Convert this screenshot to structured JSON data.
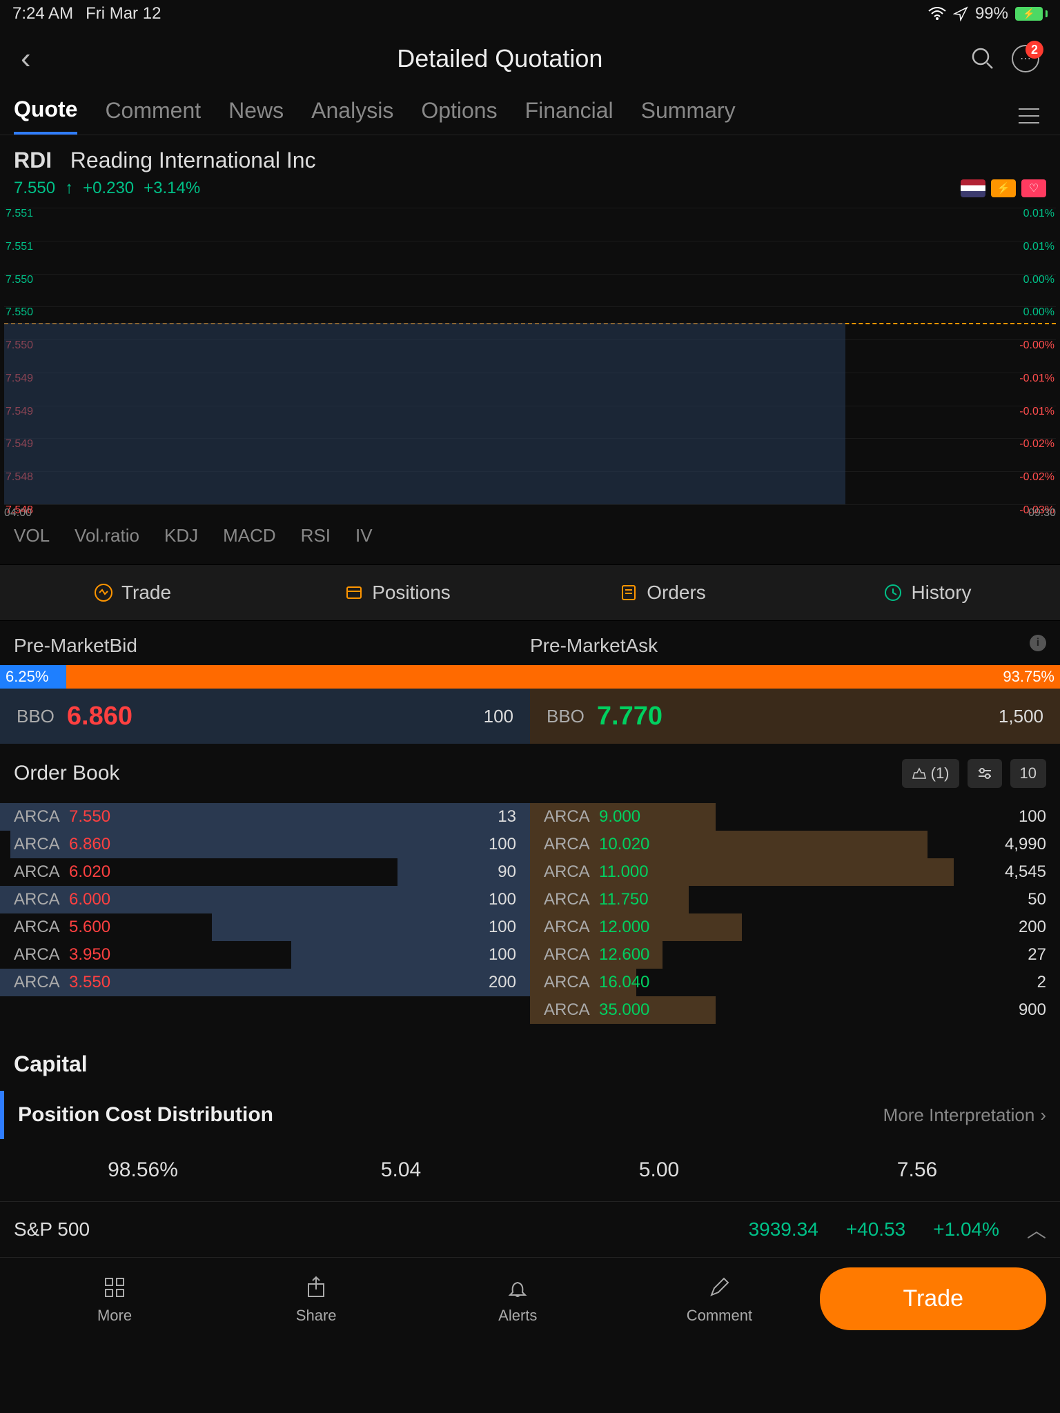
{
  "status": {
    "time": "7:24 AM",
    "date": "Fri Mar 12",
    "battery": "99%"
  },
  "title": "Detailed Quotation",
  "badge": "2",
  "tabs": [
    "Quote",
    "Comment",
    "News",
    "Analysis",
    "Options",
    "Financial",
    "Summary"
  ],
  "stock": {
    "ticker": "RDI",
    "name": "Reading International Inc",
    "price": "7.550",
    "arrow": "↑",
    "change": "+0.230",
    "pct": "+3.14%"
  },
  "chart": {
    "yLeftGreen": [
      "7.551",
      "7.551",
      "7.550",
      "7.550"
    ],
    "yLeftRed": [
      "7.550",
      "7.549",
      "7.549",
      "7.549",
      "7.548",
      "7.548"
    ],
    "yRightGreen": [
      "0.01%",
      "0.01%",
      "0.00%",
      "0.00%"
    ],
    "yRightRed": [
      "-0.00%",
      "-0.01%",
      "-0.01%",
      "-0.02%",
      "-0.02%",
      "-0.03%"
    ],
    "xLeft": "04:00",
    "xRight": "09:30"
  },
  "indicators": [
    "VOL",
    "Vol.ratio",
    "KDJ",
    "MACD",
    "RSI",
    "IV"
  ],
  "tradeRow": {
    "trade": "Trade",
    "positions": "Positions",
    "orders": "Orders",
    "history": "History"
  },
  "bidask": {
    "bidLabel": "Pre-MarketBid",
    "askLabel": "Pre-MarketAsk",
    "bidPct": "6.25%",
    "askPct": "93.75%",
    "bidPctWidth": 6.25,
    "bbo": "BBO",
    "bidPrice": "6.860",
    "bidQty": "100",
    "askPrice": "7.770",
    "askQty": "1,500"
  },
  "orderbook": {
    "title": "Order Book",
    "ctrlBank": "(1)",
    "ctrl10": "10",
    "bids": [
      {
        "ex": "ARCA",
        "price": "7.550",
        "qty": "13",
        "depth": 100
      },
      {
        "ex": "ARCA",
        "price": "6.860",
        "qty": "100",
        "depth": 98
      },
      {
        "ex": "ARCA",
        "price": "6.020",
        "qty": "90",
        "depth": 25
      },
      {
        "ex": "ARCA",
        "price": "6.000",
        "qty": "100",
        "depth": 100
      },
      {
        "ex": "ARCA",
        "price": "5.600",
        "qty": "100",
        "depth": 60
      },
      {
        "ex": "ARCA",
        "price": "3.950",
        "qty": "100",
        "depth": 45
      },
      {
        "ex": "ARCA",
        "price": "3.550",
        "qty": "200",
        "depth": 100
      }
    ],
    "asks": [
      {
        "ex": "ARCA",
        "price": "9.000",
        "qty": "100",
        "depth": 35
      },
      {
        "ex": "ARCA",
        "price": "10.020",
        "qty": "4,990",
        "depth": 75
      },
      {
        "ex": "ARCA",
        "price": "11.000",
        "qty": "4,545",
        "depth": 80
      },
      {
        "ex": "ARCA",
        "price": "11.750",
        "qty": "50",
        "depth": 30
      },
      {
        "ex": "ARCA",
        "price": "12.000",
        "qty": "200",
        "depth": 40
      },
      {
        "ex": "ARCA",
        "price": "12.600",
        "qty": "27",
        "depth": 25
      },
      {
        "ex": "ARCA",
        "price": "16.040",
        "qty": "2",
        "depth": 20
      },
      {
        "ex": "ARCA",
        "price": "35.000",
        "qty": "900",
        "depth": 35
      }
    ]
  },
  "capital": "Capital",
  "pcd": {
    "title": "Position Cost Distribution",
    "more": "More Interpretation",
    "vals": [
      "98.56%",
      "5.04",
      "5.00",
      "7.56"
    ]
  },
  "sp500": {
    "name": "S&P 500",
    "price": "3939.34",
    "change": "+40.53",
    "pct": "+1.04%"
  },
  "bottom": {
    "more": "More",
    "share": "Share",
    "alerts": "Alerts",
    "comment": "Comment",
    "trade": "Trade"
  }
}
